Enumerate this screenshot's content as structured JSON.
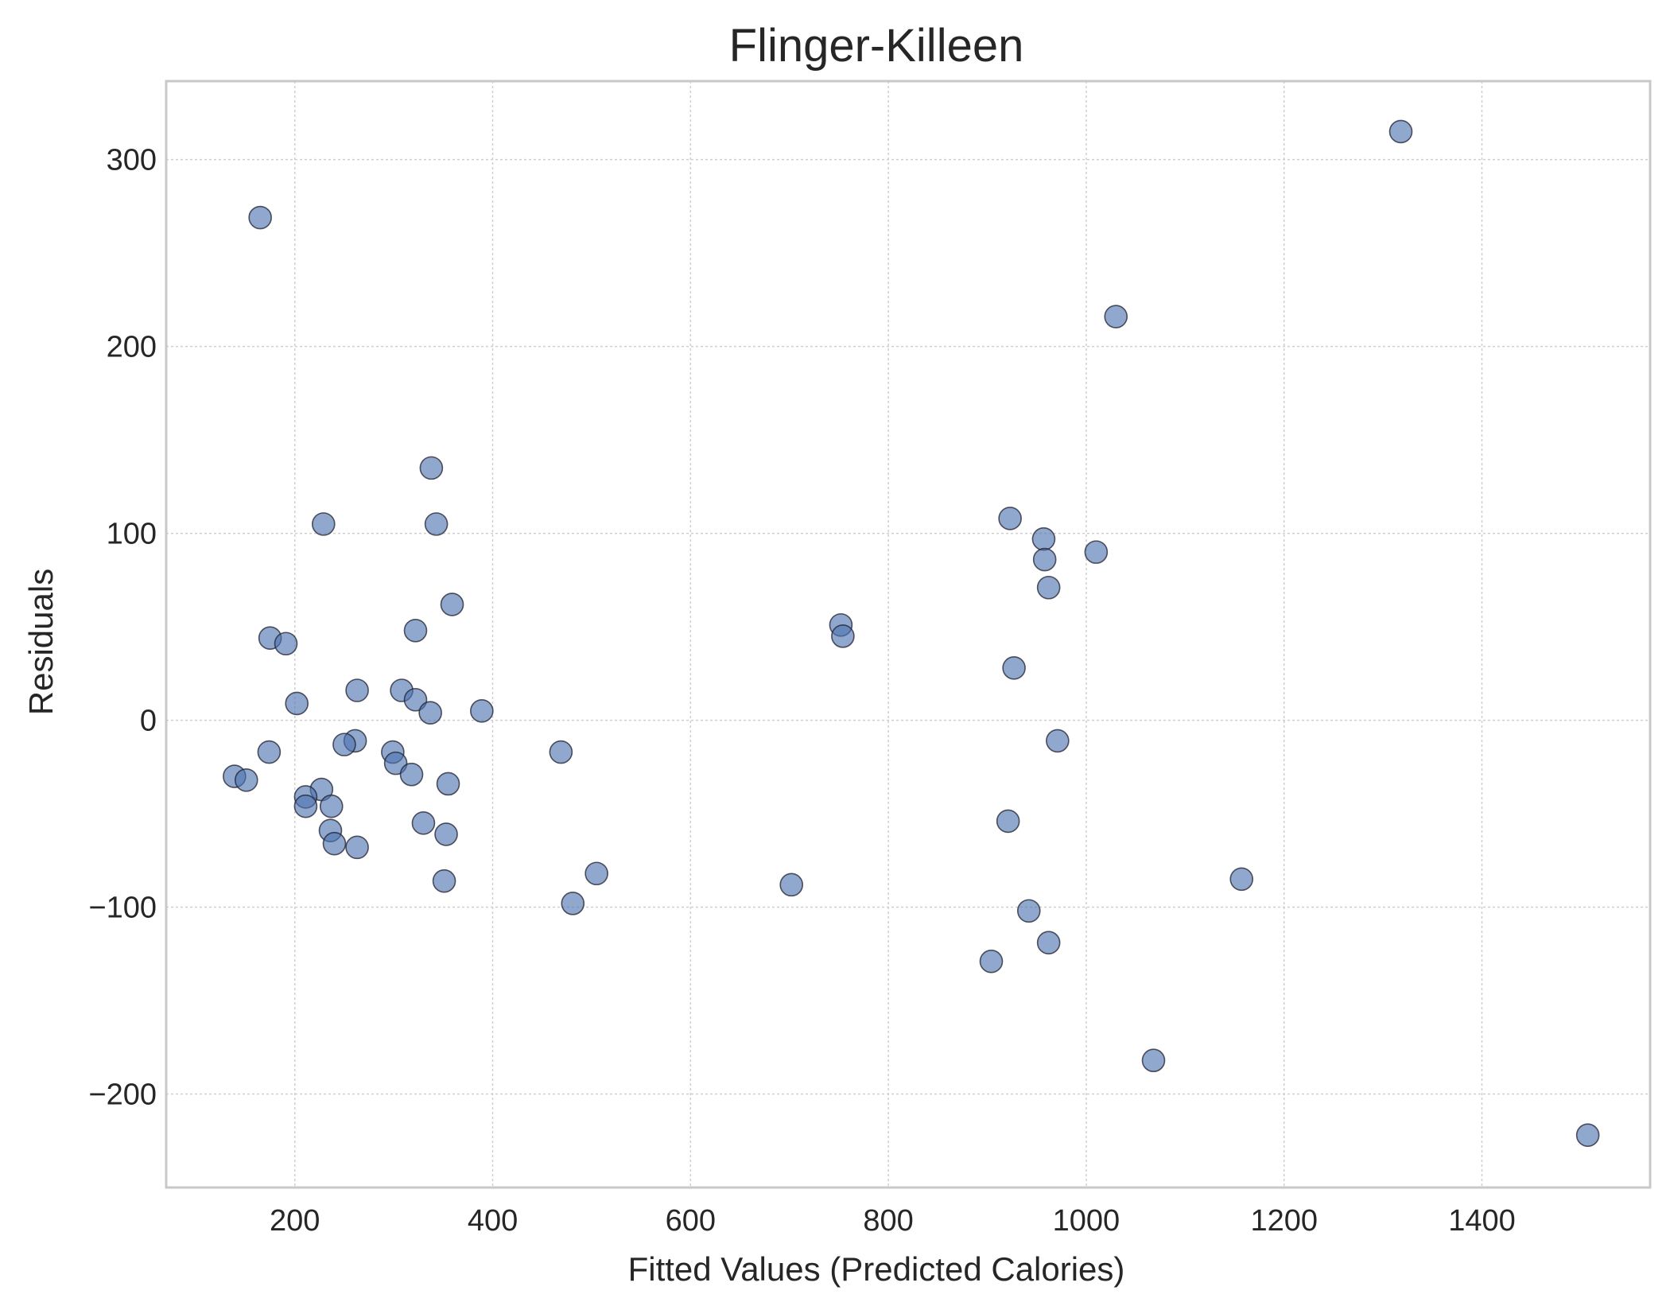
{
  "chart_data": {
    "type": "scatter",
    "title": "Flinger-Killeen",
    "xlabel": "Fitted Values (Predicted Calories)",
    "ylabel": "Residuals",
    "xlim": [
      70,
      1570
    ],
    "ylim": [
      -250,
      342
    ],
    "xticks": [
      200,
      400,
      600,
      800,
      1000,
      1200,
      1400
    ],
    "xtick_labels": [
      "200",
      "400",
      "600",
      "800",
      "1000",
      "1200",
      "1400"
    ],
    "yticks": [
      -200,
      -100,
      0,
      100,
      200,
      300
    ],
    "ytick_labels": [
      "−200",
      "−100",
      "0",
      "100",
      "200",
      "300"
    ],
    "grid": true,
    "legend": "none",
    "marker_color": "#4c72b0",
    "points": [
      {
        "x": 165,
        "y": 269
      },
      {
        "x": 1318,
        "y": 315
      },
      {
        "x": 1030,
        "y": 216
      },
      {
        "x": 338,
        "y": 135
      },
      {
        "x": 229,
        "y": 105
      },
      {
        "x": 343,
        "y": 105
      },
      {
        "x": 923,
        "y": 108
      },
      {
        "x": 957,
        "y": 97
      },
      {
        "x": 1010,
        "y": 90
      },
      {
        "x": 958,
        "y": 86
      },
      {
        "x": 962,
        "y": 71
      },
      {
        "x": 359,
        "y": 62
      },
      {
        "x": 752,
        "y": 51
      },
      {
        "x": 754,
        "y": 45
      },
      {
        "x": 322,
        "y": 48
      },
      {
        "x": 175,
        "y": 44
      },
      {
        "x": 191,
        "y": 41
      },
      {
        "x": 927,
        "y": 28
      },
      {
        "x": 263,
        "y": 16
      },
      {
        "x": 308,
        "y": 16
      },
      {
        "x": 322,
        "y": 11
      },
      {
        "x": 202,
        "y": 9
      },
      {
        "x": 337,
        "y": 4
      },
      {
        "x": 389,
        "y": 5
      },
      {
        "x": 261,
        "y": -11
      },
      {
        "x": 971,
        "y": -11
      },
      {
        "x": 250,
        "y": -13
      },
      {
        "x": 174,
        "y": -17
      },
      {
        "x": 299,
        "y": -17
      },
      {
        "x": 469,
        "y": -17
      },
      {
        "x": 302,
        "y": -23
      },
      {
        "x": 318,
        "y": -29
      },
      {
        "x": 139,
        "y": -30
      },
      {
        "x": 151,
        "y": -32
      },
      {
        "x": 355,
        "y": -34
      },
      {
        "x": 227,
        "y": -37
      },
      {
        "x": 211,
        "y": -41
      },
      {
        "x": 211,
        "y": -46
      },
      {
        "x": 237,
        "y": -46
      },
      {
        "x": 921,
        "y": -54
      },
      {
        "x": 330,
        "y": -55
      },
      {
        "x": 236,
        "y": -59
      },
      {
        "x": 353,
        "y": -61
      },
      {
        "x": 240,
        "y": -66
      },
      {
        "x": 263,
        "y": -68
      },
      {
        "x": 505,
        "y": -82
      },
      {
        "x": 1157,
        "y": -85
      },
      {
        "x": 351,
        "y": -86
      },
      {
        "x": 702,
        "y": -88
      },
      {
        "x": 481,
        "y": -98
      },
      {
        "x": 942,
        "y": -102
      },
      {
        "x": 962,
        "y": -119
      },
      {
        "x": 904,
        "y": -129
      },
      {
        "x": 1068,
        "y": -182
      },
      {
        "x": 1507,
        "y": -222
      }
    ]
  }
}
